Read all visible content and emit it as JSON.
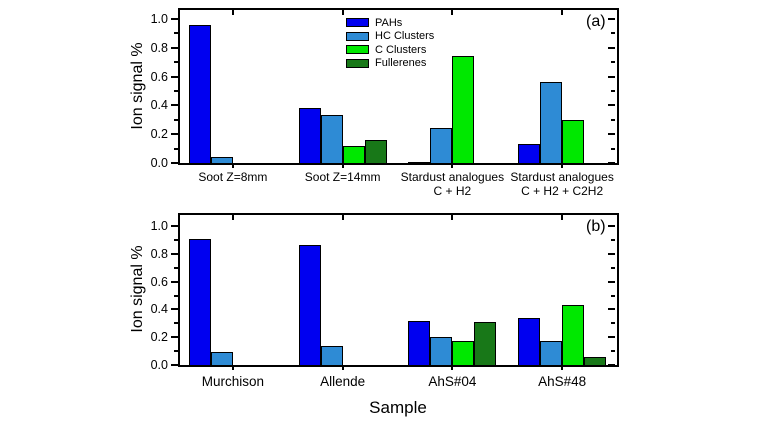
{
  "figure": {
    "background": "#ffffff",
    "axis_color": "#000000"
  },
  "chart_data": [
    {
      "type": "bar",
      "panel_tag": "(a)",
      "title": "",
      "ylabel": "Ion signal %",
      "xlabel": "",
      "ylim": [
        0,
        1.08
      ],
      "y_ticks": [
        "0.0",
        "0.2",
        "0.4",
        "0.6",
        "0.8",
        "1.0"
      ],
      "grid": false,
      "legend_position": "top-inside-left-of-center",
      "legend_items": [
        "PAHs",
        "HC Clusters",
        "C Clusters",
        "Fullerenes"
      ],
      "categories": [
        "Soot Z=8mm",
        "Soot Z=14mm",
        "Stardust analogues\nC + H2",
        "Stardust analogues\nC + H2 + C2H2"
      ],
      "series": [
        {
          "name": "PAHs",
          "color": "#0000f0",
          "values": [
            0.96,
            0.385,
            0.01,
            0.135
          ]
        },
        {
          "name": "HC Clusters",
          "color": "#2e8bd5",
          "values": [
            0.04,
            0.335,
            0.245,
            0.565
          ]
        },
        {
          "name": "C Clusters",
          "color": "#00e800",
          "values": [
            0,
            0.12,
            0.745,
            0.3
          ]
        },
        {
          "name": "Fullerenes",
          "color": "#187818",
          "values": [
            0,
            0.16,
            0,
            0
          ]
        }
      ]
    },
    {
      "type": "bar",
      "panel_tag": "(b)",
      "title": "",
      "ylabel": "Ion signal %",
      "xlabel": "Sample",
      "ylim": [
        0,
        1.08
      ],
      "y_ticks": [
        "0.0",
        "0.2",
        "0.4",
        "0.6",
        "0.8",
        "1.0"
      ],
      "grid": false,
      "legend_position": "none",
      "categories": [
        "Murchison",
        "Allende",
        "AhS#04",
        "AhS#48"
      ],
      "series": [
        {
          "name": "PAHs",
          "color": "#0000f0",
          "values": [
            0.91,
            0.865,
            0.315,
            0.34
          ]
        },
        {
          "name": "HC Clusters",
          "color": "#2e8bd5",
          "values": [
            0.095,
            0.135,
            0.205,
            0.17
          ]
        },
        {
          "name": "C Clusters",
          "color": "#00e800",
          "values": [
            0,
            0,
            0.175,
            0.435
          ]
        },
        {
          "name": "Fullerenes",
          "color": "#187818",
          "values": [
            0,
            0,
            0.31,
            0.055
          ]
        }
      ]
    }
  ]
}
